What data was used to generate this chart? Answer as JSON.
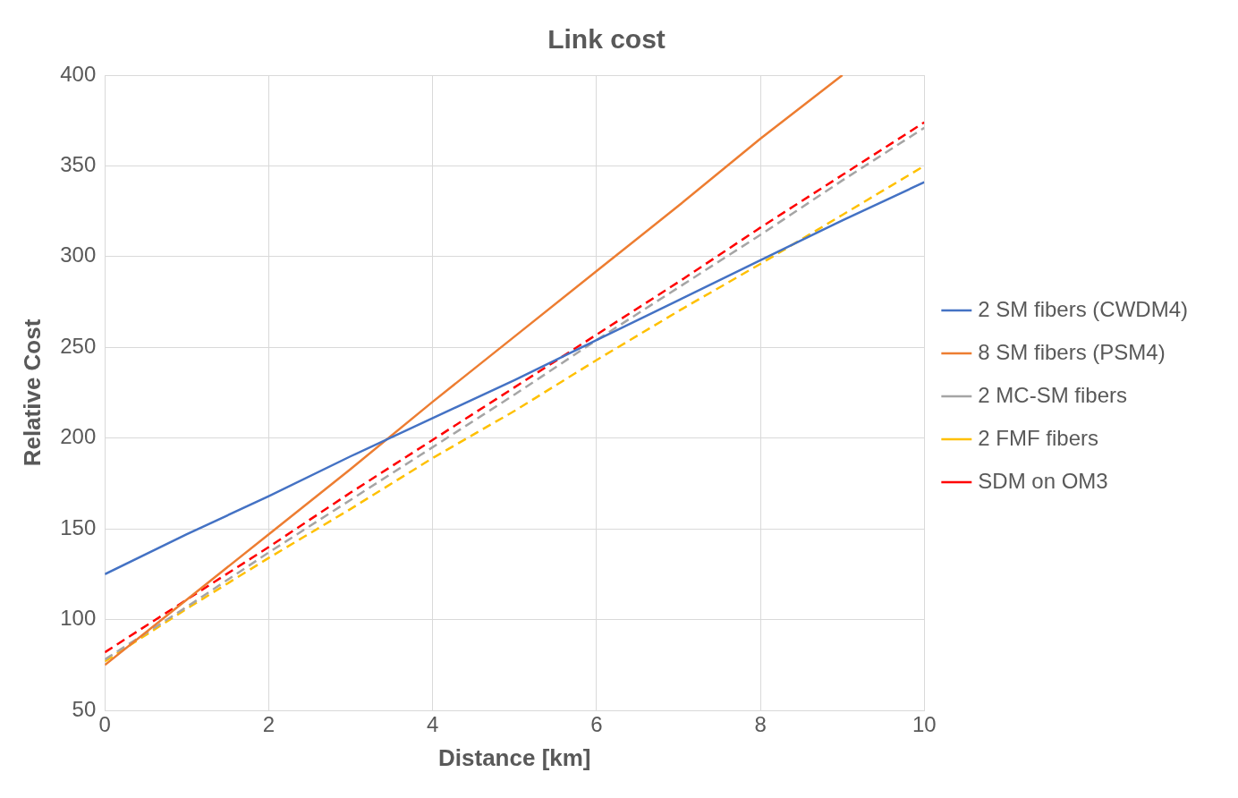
{
  "chart_data": {
    "type": "line",
    "title": "Link cost",
    "xlabel": "Distance [km]",
    "ylabel": "Relative Cost",
    "xlim": [
      0,
      10
    ],
    "xticks": [
      0,
      2,
      4,
      6,
      8,
      10
    ],
    "ylim": [
      50,
      400
    ],
    "yticks": [
      50,
      100,
      150,
      200,
      250,
      300,
      350,
      400
    ],
    "grid": true,
    "legend": "right",
    "marker": "none",
    "series": [
      {
        "name": "2 SM fibers (CWDM4)",
        "color": "#4472c4",
        "line_style": "solid",
        "x": [
          0,
          1,
          2,
          3,
          4,
          5,
          6,
          7,
          8,
          9,
          10
        ],
        "values": [
          125,
          147,
          168,
          190,
          211,
          232,
          254,
          276,
          298,
          320,
          341
        ]
      },
      {
        "name": "8 SM fibers (PSM4)",
        "color": "#ed7d31",
        "line_style": "solid",
        "x": [
          0,
          1,
          2,
          3,
          4,
          5,
          6,
          7,
          8,
          9
        ],
        "values": [
          75,
          111,
          147,
          183,
          220,
          256,
          292,
          328,
          365,
          400
        ]
      },
      {
        "name": "2 MC-SM fibers",
        "color": "#a5a5a5",
        "line_style": "dashed",
        "x": [
          0,
          1,
          2,
          3,
          4,
          5,
          6,
          7,
          8,
          9,
          10
        ],
        "values": [
          78,
          107,
          137,
          166,
          195,
          224,
          254,
          283,
          312,
          342,
          371
        ]
      },
      {
        "name": "2 FMF fibers",
        "color": "#ffc000",
        "line_style": "dashed",
        "x": [
          0,
          1,
          2,
          3,
          4,
          5,
          6,
          7,
          8,
          9,
          10
        ],
        "values": [
          77,
          106,
          134,
          161,
          189,
          215,
          243,
          270,
          296,
          323,
          350
        ]
      },
      {
        "name": "SDM on OM3",
        "color": "#ff0000",
        "line_style": "dashed",
        "x": [
          0,
          1,
          2,
          3,
          4,
          5,
          6,
          7,
          8,
          9,
          10
        ],
        "values": [
          82,
          111,
          140,
          170,
          199,
          228,
          257,
          286,
          316,
          345,
          374
        ]
      }
    ]
  }
}
